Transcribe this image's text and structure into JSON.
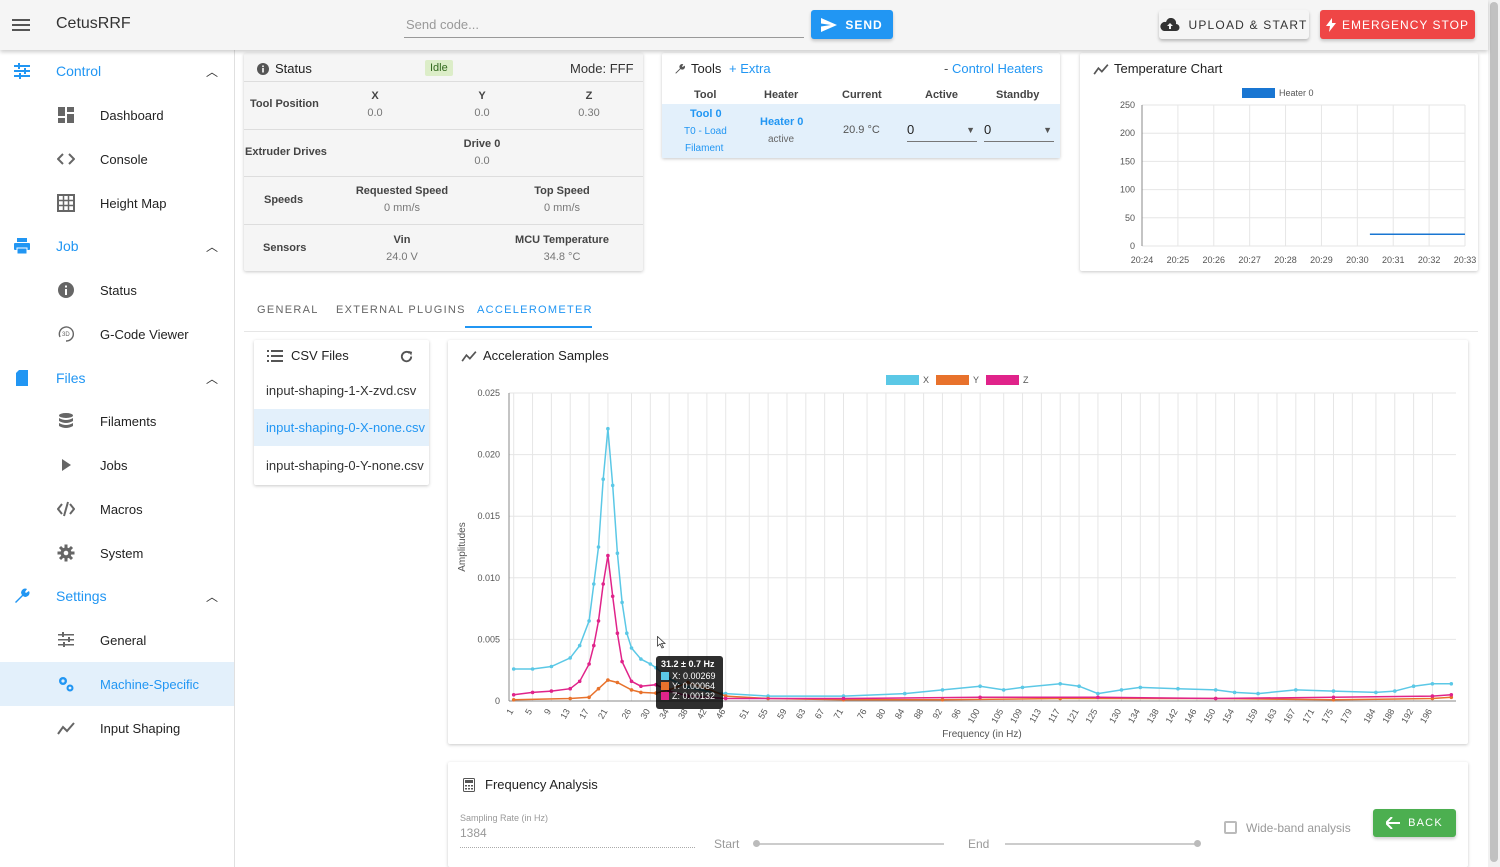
{
  "app": {
    "title": "CetusRRF"
  },
  "topbar": {
    "send_placeholder": "Send code...",
    "send_label": "SEND",
    "upload_label": "UPLOAD & START",
    "estop_label": "EMERGENCY STOP"
  },
  "sidebar": {
    "groups": [
      {
        "label": "Control",
        "items": [
          "Dashboard",
          "Console",
          "Height Map"
        ]
      },
      {
        "label": "Job",
        "items": [
          "Status",
          "G-Code Viewer"
        ]
      },
      {
        "label": "Files",
        "items": [
          "Filaments",
          "Jobs",
          "Macros",
          "System"
        ]
      },
      {
        "label": "Settings",
        "items": [
          "General",
          "Machine-Specific",
          "Input Shaping"
        ]
      }
    ],
    "active_item": "Machine-Specific"
  },
  "status": {
    "title": "Status",
    "state": "Idle",
    "mode": "Mode: FFF",
    "tool_position": {
      "label": "Tool Position",
      "axes": [
        {
          "name": "X",
          "value": "0.0"
        },
        {
          "name": "Y",
          "value": "0.0"
        },
        {
          "name": "Z",
          "value": "0.30"
        }
      ]
    },
    "extruder": {
      "label": "Extruder Drives",
      "drive_name": "Drive 0",
      "drive_value": "0.0"
    },
    "speeds": {
      "label": "Speeds",
      "requested_label": "Requested Speed",
      "requested_value": "0 mm/s",
      "top_label": "Top Speed",
      "top_value": "0 mm/s"
    },
    "sensors": {
      "label": "Sensors",
      "vin_label": "Vin",
      "vin_value": "24.0 V",
      "mcu_label": "MCU Temperature",
      "mcu_value": "34.8 °C"
    }
  },
  "tools": {
    "title": "Tools",
    "extra": "Extra",
    "control_heaters": "Control Heaters",
    "headers": [
      "Tool",
      "Heater",
      "Current",
      "Active",
      "Standby"
    ],
    "row": {
      "tool": "Tool 0",
      "tool_sub": "T0 - Load",
      "tool_sub2": "Filament",
      "heater": "Heater 0",
      "heater_state": "active",
      "current": "20.9 °C",
      "active": "0",
      "standby": "0"
    }
  },
  "temp_chart": {
    "title": "Temperature Chart",
    "legend": "Heater 0",
    "color": "#1976d2",
    "y_ticks": [
      "250",
      "200",
      "150",
      "100",
      "50",
      "0"
    ],
    "x_ticks": [
      "20:24",
      "20:25",
      "20:26",
      "20:27",
      "20:28",
      "20:29",
      "20:30",
      "20:31",
      "20:32",
      "20:33"
    ],
    "ylim": [
      0,
      250
    ]
  },
  "tabs": [
    "GENERAL",
    "EXTERNAL PLUGINS",
    "ACCELEROMETER"
  ],
  "active_tab": "ACCELEROMETER",
  "csv": {
    "title": "CSV Files",
    "files": [
      "input-shaping-1-X-zvd.csv",
      "input-shaping-0-X-none.csv",
      "input-shaping-0-Y-none.csv"
    ],
    "selected": "input-shaping-0-X-none.csv"
  },
  "accel": {
    "title": "Acceleration Samples",
    "tooltip": {
      "header": "31.2 ± 0.7 Hz",
      "x": "X: 0.00269",
      "y": "Y: 0.00064",
      "z": "Z: 0.00132"
    }
  },
  "chart_data": {
    "type": "line",
    "title": "",
    "xlabel": "Frequency (in Hz)",
    "ylabel": "Amplitudes",
    "ylim": [
      0,
      0.025
    ],
    "y_ticks": [
      "0",
      "0.005",
      "0.010",
      "0.015",
      "0.020",
      "0.025"
    ],
    "x_ticks": [
      "1",
      "5",
      "9",
      "13",
      "17",
      "21",
      "26",
      "30",
      "34",
      "38",
      "42",
      "46",
      "51",
      "55",
      "59",
      "63",
      "67",
      "71",
      "76",
      "80",
      "84",
      "88",
      "92",
      "96",
      "100",
      "105",
      "109",
      "113",
      "117",
      "121",
      "125",
      "130",
      "134",
      "138",
      "142",
      "146",
      "150",
      "154",
      "159",
      "163",
      "167",
      "171",
      "175",
      "179",
      "184",
      "188",
      "192",
      "196"
    ],
    "legend": [
      "X",
      "Y",
      "Z"
    ],
    "colors": {
      "X": "#5bc8e6",
      "Y": "#e8722c",
      "Z": "#e0238a"
    },
    "series": [
      {
        "name": "X",
        "points": [
          [
            1,
            0.0026
          ],
          [
            5,
            0.0026
          ],
          [
            9,
            0.0028
          ],
          [
            13,
            0.0035
          ],
          [
            15,
            0.0045
          ],
          [
            17,
            0.0065
          ],
          [
            18,
            0.0095
          ],
          [
            19,
            0.0125
          ],
          [
            20,
            0.018
          ],
          [
            21,
            0.0221
          ],
          [
            22,
            0.0175
          ],
          [
            23,
            0.012
          ],
          [
            24,
            0.008
          ],
          [
            25,
            0.0055
          ],
          [
            26,
            0.0043
          ],
          [
            28,
            0.0034
          ],
          [
            30,
            0.003
          ],
          [
            31.2,
            0.0027
          ],
          [
            34,
            0.0018
          ],
          [
            38,
            0.0011
          ],
          [
            42,
            0.0008
          ],
          [
            46,
            0.0006
          ],
          [
            55,
            0.0004
          ],
          [
            71,
            0.0004
          ],
          [
            84,
            0.0006
          ],
          [
            92,
            0.0009
          ],
          [
            100,
            0.0012
          ],
          [
            105,
            0.0009
          ],
          [
            109,
            0.0011
          ],
          [
            117,
            0.0014
          ],
          [
            121,
            0.0012
          ],
          [
            125,
            0.0006
          ],
          [
            130,
            0.0009
          ],
          [
            134,
            0.0011
          ],
          [
            142,
            0.001
          ],
          [
            150,
            0.0009
          ],
          [
            154,
            0.0007
          ],
          [
            159,
            0.0006
          ],
          [
            167,
            0.0009
          ],
          [
            175,
            0.0008
          ],
          [
            184,
            0.0007
          ],
          [
            188,
            0.0008
          ],
          [
            192,
            0.0012
          ],
          [
            196,
            0.0014
          ],
          [
            200,
            0.0014
          ]
        ]
      },
      {
        "name": "Y",
        "points": [
          [
            1,
            0.0001
          ],
          [
            13,
            0.0002
          ],
          [
            17,
            0.0003
          ],
          [
            19,
            0.001
          ],
          [
            21,
            0.0017
          ],
          [
            23,
            0.0015
          ],
          [
            26,
            0.0009
          ],
          [
            28,
            0.0007
          ],
          [
            31.2,
            0.00064
          ],
          [
            34,
            0.0009
          ],
          [
            38,
            0.0015
          ],
          [
            42,
            0.001
          ],
          [
            46,
            0.0004
          ],
          [
            55,
            0.0002
          ],
          [
            71,
            0.0001
          ],
          [
            92,
            0.0001
          ],
          [
            117,
            0.0002
          ],
          [
            150,
            0.0002
          ],
          [
            175,
            0.0001
          ],
          [
            196,
            0.0002
          ],
          [
            200,
            0.0003
          ]
        ]
      },
      {
        "name": "Z",
        "points": [
          [
            1,
            0.0005
          ],
          [
            5,
            0.0007
          ],
          [
            9,
            0.0008
          ],
          [
            13,
            0.001
          ],
          [
            15,
            0.0016
          ],
          [
            17,
            0.003
          ],
          [
            18,
            0.0045
          ],
          [
            19,
            0.0065
          ],
          [
            20,
            0.0095
          ],
          [
            21,
            0.0118
          ],
          [
            22,
            0.0085
          ],
          [
            23,
            0.0055
          ],
          [
            24,
            0.0032
          ],
          [
            26,
            0.0016
          ],
          [
            28,
            0.0012
          ],
          [
            31.2,
            0.00132
          ],
          [
            34,
            0.0008
          ],
          [
            38,
            0.0004
          ],
          [
            46,
            0.0002
          ],
          [
            71,
            0.0002
          ],
          [
            100,
            0.0003
          ],
          [
            125,
            0.0003
          ],
          [
            150,
            0.0002
          ],
          [
            175,
            0.0003
          ],
          [
            196,
            0.0004
          ],
          [
            200,
            0.0005
          ]
        ]
      }
    ]
  },
  "freq": {
    "title": "Frequency Analysis",
    "rate_label": "Sampling Rate (in Hz)",
    "rate_value": "1384",
    "start_label": "Start",
    "end_label": "End",
    "wideband_label": "Wide-band analysis",
    "back_label": "BACK"
  }
}
